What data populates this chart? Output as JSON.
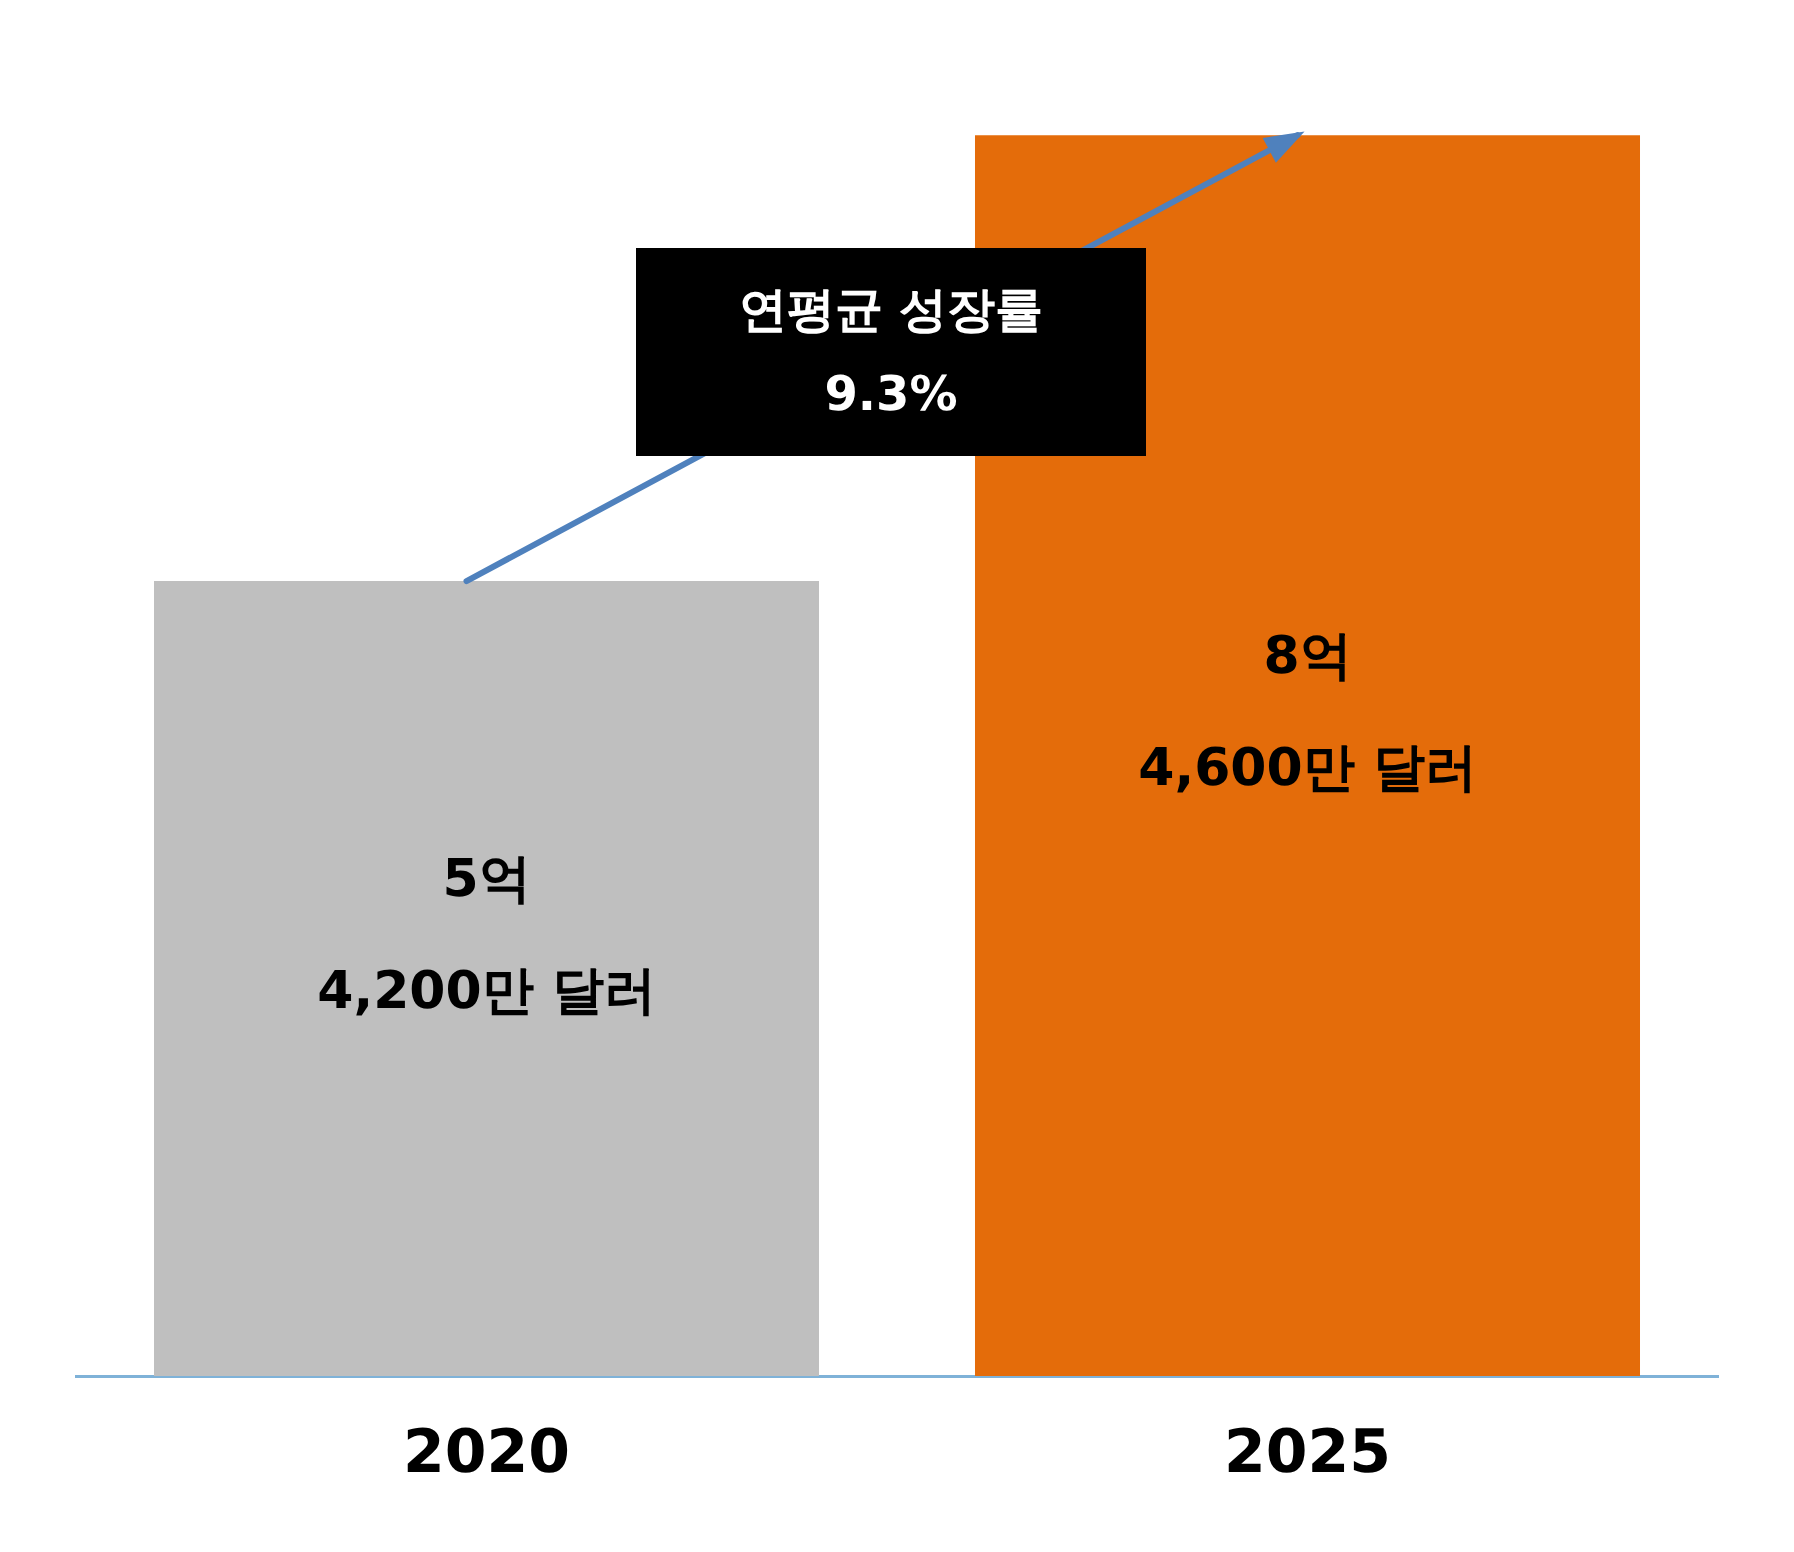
{
  "chart_data": {
    "type": "bar",
    "categories": [
      "2020",
      "2025"
    ],
    "values": [
      5.42,
      8.46
    ],
    "colors": [
      "#bfbfbf",
      "#e46c0a"
    ],
    "value_labels": [
      "5억 4,200만 달러",
      "8억 4,600만 달러"
    ],
    "annotations": [
      "연평균 성장률 9.3%"
    ],
    "tick_labels": "x",
    "grid": false,
    "legend": false
  }
}
